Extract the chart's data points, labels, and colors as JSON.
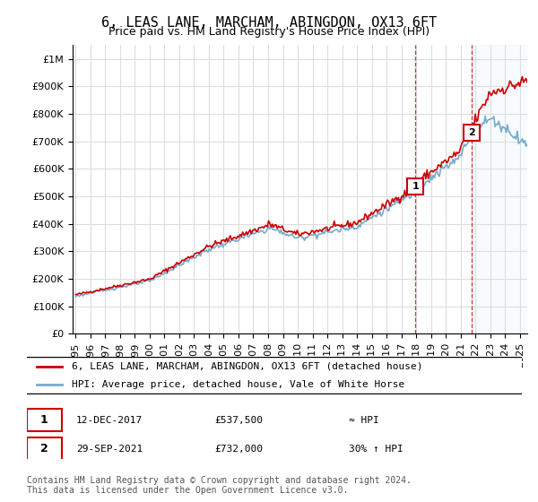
{
  "title": "6, LEAS LANE, MARCHAM, ABINGDON, OX13 6FT",
  "subtitle": "Price paid vs. HM Land Registry's House Price Index (HPI)",
  "ylim": [
    0,
    1050000
  ],
  "xlim": [
    1994.8,
    2025.5
  ],
  "yticks": [
    0,
    100000,
    200000,
    300000,
    400000,
    500000,
    600000,
    700000,
    800000,
    900000,
    1000000
  ],
  "ytick_labels": [
    "£0",
    "£100K",
    "£200K",
    "£300K",
    "£400K",
    "£500K",
    "£600K",
    "£700K",
    "£800K",
    "£900K",
    "£1M"
  ],
  "xticks": [
    1995,
    1996,
    1997,
    1998,
    1999,
    2000,
    2001,
    2002,
    2003,
    2004,
    2005,
    2006,
    2007,
    2008,
    2009,
    2010,
    2011,
    2012,
    2013,
    2014,
    2015,
    2016,
    2017,
    2018,
    2019,
    2020,
    2021,
    2022,
    2023,
    2024,
    2025
  ],
  "sale1_x": 2017.95,
  "sale1_y": 537500,
  "sale2_x": 2021.75,
  "sale2_y": 732000,
  "property_line_color": "#cc0000",
  "hpi_line_color": "#77aacc",
  "marker_box_color": "#cc0000",
  "grid_color": "#dddddd",
  "legend_label1": "6, LEAS LANE, MARCHAM, ABINGDON, OX13 6FT (detached house)",
  "legend_label2": "HPI: Average price, detached house, Vale of White Horse",
  "sale1_date": "12-DEC-2017",
  "sale1_price": "£537,500",
  "sale1_hpi": "≈ HPI",
  "sale2_date": "29-SEP-2021",
  "sale2_price": "£732,000",
  "sale2_hpi": "30% ↑ HPI",
  "footnote": "Contains HM Land Registry data © Crown copyright and database right 2024.\nThis data is licensed under the Open Government Licence v3.0.",
  "title_fontsize": 11,
  "subtitle_fontsize": 9,
  "tick_fontsize": 8,
  "legend_fontsize": 8,
  "footnote_fontsize": 7
}
